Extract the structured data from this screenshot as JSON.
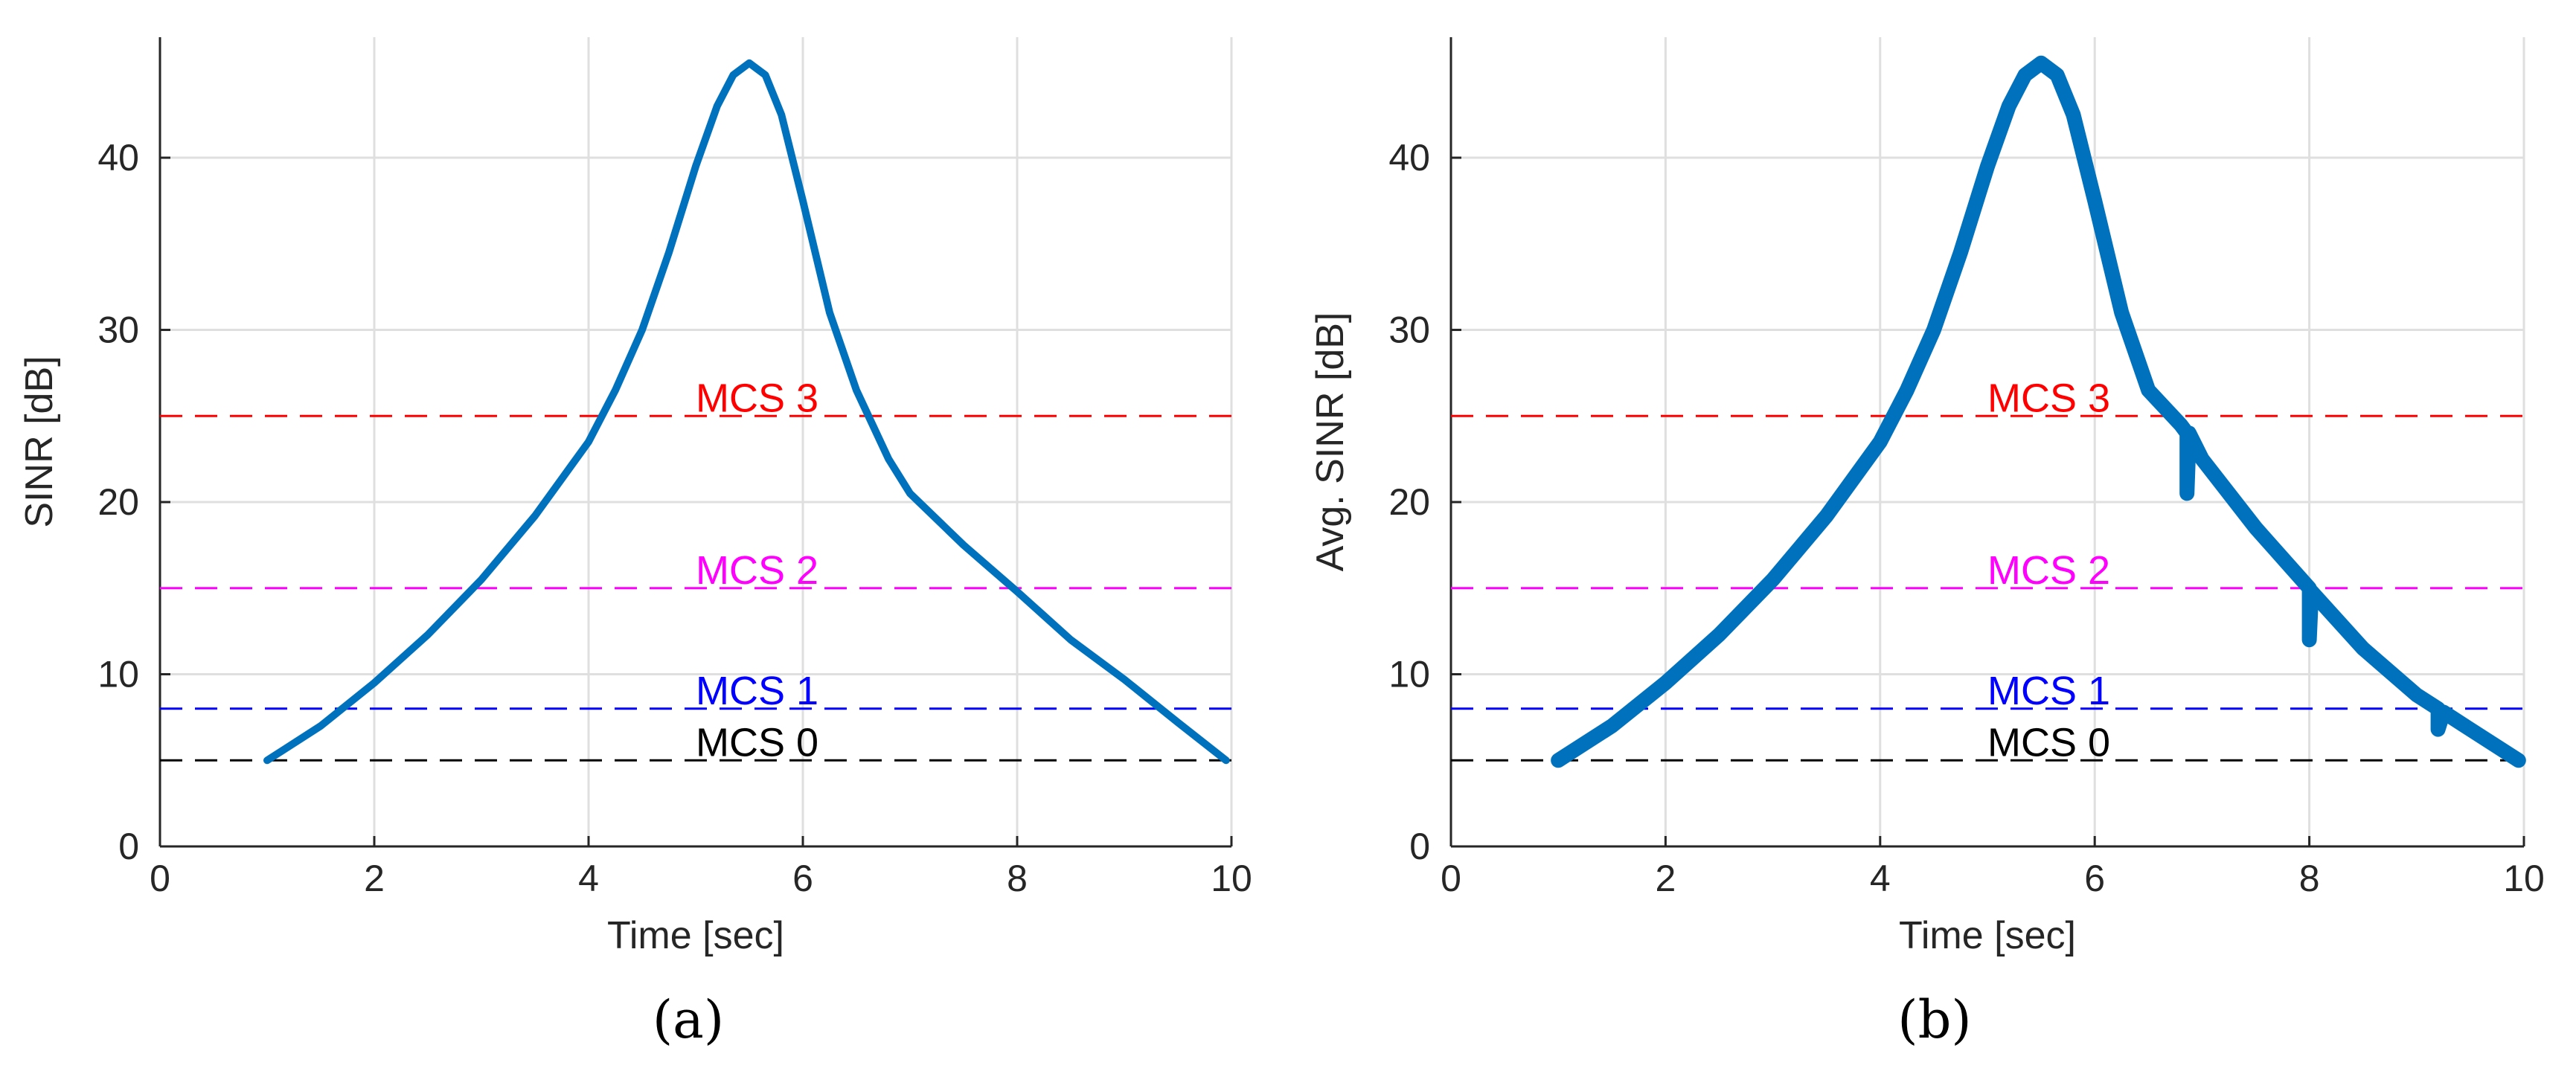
{
  "chart_data": [
    {
      "type": "line",
      "caption": "(a)",
      "xlabel": "Time [sec]",
      "ylabel": "SINR [dB]",
      "xlim": [
        0,
        10
      ],
      "ylim": [
        0,
        47
      ],
      "xticks": [
        0,
        2,
        4,
        6,
        8,
        10
      ],
      "yticks": [
        0,
        10,
        20,
        30,
        40
      ],
      "grid": true,
      "series": [
        {
          "name": "SINR",
          "color": "#0072BD",
          "style": "thin",
          "x": [
            1.0,
            1.5,
            2.0,
            2.5,
            3.0,
            3.5,
            4.0,
            4.25,
            4.5,
            4.75,
            5.0,
            5.2,
            5.35,
            5.5,
            5.65,
            5.8,
            6.0,
            6.25,
            6.5,
            6.8,
            7.0,
            7.5,
            8.0,
            8.5,
            9.0,
            9.5,
            9.95
          ],
          "y": [
            5.0,
            7.0,
            9.5,
            12.3,
            15.5,
            19.2,
            23.5,
            26.5,
            30.0,
            34.5,
            39.5,
            43.0,
            44.8,
            45.5,
            44.8,
            42.5,
            37.5,
            31.0,
            26.5,
            22.5,
            20.5,
            17.5,
            14.8,
            12.0,
            9.7,
            7.2,
            5.0
          ]
        }
      ],
      "thresholds": [
        {
          "label": "MCS 3",
          "value": 25,
          "color": "#FF0000"
        },
        {
          "label": "MCS 2",
          "value": 15,
          "color": "#FF00FF"
        },
        {
          "label": "MCS 1",
          "value": 8,
          "color": "#0000FF"
        },
        {
          "label": "MCS 0",
          "value": 5,
          "color": "#000000"
        }
      ]
    },
    {
      "type": "line",
      "caption": "(b)",
      "xlabel": "Time [sec]",
      "ylabel": "Avg. SINR [dB]",
      "xlim": [
        0,
        10
      ],
      "ylim": [
        0,
        47
      ],
      "xticks": [
        0,
        2,
        4,
        6,
        8,
        10
      ],
      "yticks": [
        0,
        10,
        20,
        30,
        40
      ],
      "grid": true,
      "series": [
        {
          "name": "Avg. SINR",
          "color": "#0072BD",
          "style": "thick",
          "x": [
            1.0,
            1.5,
            2.0,
            2.5,
            3.0,
            3.5,
            4.0,
            4.25,
            4.5,
            4.75,
            5.0,
            5.2,
            5.35,
            5.5,
            5.65,
            5.8,
            6.0,
            6.25,
            6.5,
            6.8,
            6.86,
            6.86,
            6.88,
            7.0,
            7.5,
            8.0,
            8.0,
            8.02,
            8.5,
            9.0,
            9.2,
            9.2,
            9.25,
            9.5,
            9.95
          ],
          "y": [
            5.0,
            7.0,
            9.5,
            12.3,
            15.5,
            19.2,
            23.5,
            26.5,
            30.0,
            34.5,
            39.5,
            43.0,
            44.8,
            45.5,
            44.8,
            42.5,
            37.5,
            31.0,
            26.5,
            24.5,
            24.0,
            20.5,
            24.0,
            22.5,
            18.5,
            15.0,
            12.0,
            14.8,
            11.5,
            8.8,
            8.0,
            6.8,
            7.8,
            6.8,
            5.0
          ]
        }
      ],
      "thresholds": [
        {
          "label": "MCS 3",
          "value": 25,
          "color": "#FF0000"
        },
        {
          "label": "MCS 2",
          "value": 15,
          "color": "#FF00FF"
        },
        {
          "label": "MCS 1",
          "value": 8,
          "color": "#0000FF"
        },
        {
          "label": "MCS 0",
          "value": 5,
          "color": "#000000"
        }
      ]
    }
  ]
}
